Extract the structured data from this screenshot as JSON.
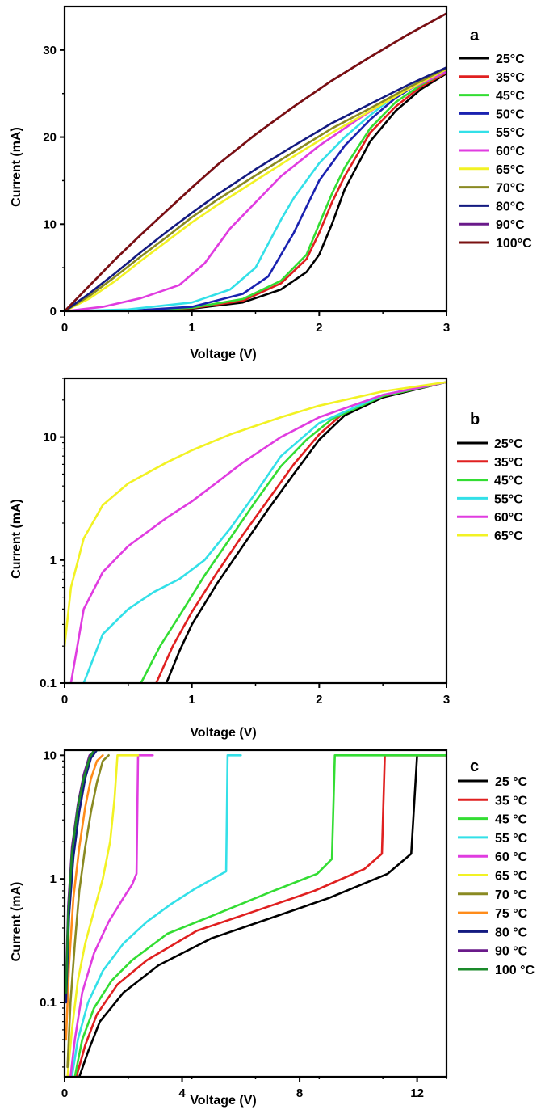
{
  "chart_data": [
    {
      "panel": "a",
      "type": "line",
      "xlabel": "Voltage (V)",
      "ylabel": "Current (mA)",
      "xlim": [
        0,
        3
      ],
      "ylim": [
        0,
        35
      ],
      "yscale": "linear",
      "xticks": [
        "0",
        "1",
        "2",
        "3"
      ],
      "yticks": [
        "0",
        "10",
        "20",
        "30"
      ],
      "legend_position": "right",
      "series": [
        {
          "name": "25°C",
          "color": "#000000",
          "x": [
            0,
            0.5,
            1.0,
            1.4,
            1.7,
            1.9,
            2.0,
            2.1,
            2.2,
            2.4,
            2.6,
            2.8,
            3.0
          ],
          "y": [
            0,
            0.05,
            0.3,
            1.0,
            2.5,
            4.5,
            6.5,
            10.0,
            14.0,
            19.5,
            23.0,
            25.5,
            27.3
          ]
        },
        {
          "name": "35°C",
          "color": "#e02020",
          "x": [
            0,
            0.5,
            1.0,
            1.4,
            1.7,
            1.9,
            2.0,
            2.1,
            2.2,
            2.4,
            2.6,
            2.8,
            3.0
          ],
          "y": [
            0,
            0.05,
            0.35,
            1.2,
            3.2,
            6.0,
            9.0,
            12.5,
            15.5,
            20.5,
            23.5,
            25.8,
            27.4
          ]
        },
        {
          "name": "45°C",
          "color": "#33dd33",
          "x": [
            0,
            0.5,
            1.0,
            1.4,
            1.7,
            1.9,
            2.0,
            2.1,
            2.2,
            2.4,
            2.6,
            2.8,
            3.0
          ],
          "y": [
            0,
            0.05,
            0.4,
            1.4,
            3.5,
            6.5,
            10.0,
            13.5,
            16.5,
            21.0,
            24.0,
            26.0,
            27.5
          ]
        },
        {
          "name": "50°C",
          "color": "#1a22b0",
          "x": [
            0,
            0.5,
            1.0,
            1.4,
            1.6,
            1.8,
            1.9,
            2.0,
            2.2,
            2.4,
            2.6,
            2.8,
            3.0
          ],
          "y": [
            0,
            0.05,
            0.5,
            2.0,
            4.0,
            9.0,
            12.0,
            15.0,
            19.0,
            22.0,
            24.5,
            26.3,
            27.6
          ]
        },
        {
          "name": "55°C",
          "color": "#33e0e8",
          "x": [
            0,
            0.5,
            1.0,
            1.3,
            1.5,
            1.7,
            1.8,
            2.0,
            2.2,
            2.4,
            2.6,
            2.8,
            3.0
          ],
          "y": [
            0,
            0.2,
            1.0,
            2.5,
            5.0,
            10.5,
            13.0,
            17.0,
            20.0,
            22.5,
            24.8,
            26.5,
            27.8
          ]
        },
        {
          "name": "60°C",
          "color": "#e03ce0",
          "x": [
            0,
            0.3,
            0.6,
            0.9,
            1.1,
            1.3,
            1.5,
            1.7,
            2.0,
            2.3,
            2.6,
            3.0
          ],
          "y": [
            0,
            0.5,
            1.5,
            3.0,
            5.5,
            9.5,
            12.5,
            15.5,
            19.0,
            22.0,
            24.8,
            27.5
          ]
        },
        {
          "name": "65°C",
          "color": "#f2f224",
          "x": [
            0,
            0.2,
            0.4,
            0.6,
            0.8,
            1.0,
            1.2,
            1.5,
            1.8,
            2.1,
            2.4,
            2.7,
            3.0
          ],
          "y": [
            0,
            1.5,
            3.5,
            5.8,
            8.0,
            10.2,
            12.2,
            15.0,
            17.8,
            20.5,
            23.0,
            25.5,
            27.8
          ]
        },
        {
          "name": "70°C",
          "color": "#8a8a22",
          "x": [
            0,
            0.2,
            0.4,
            0.6,
            0.8,
            1.0,
            1.2,
            1.5,
            1.8,
            2.1,
            2.4,
            2.7,
            3.0
          ],
          "y": [
            0,
            1.8,
            4.0,
            6.3,
            8.5,
            10.8,
            12.8,
            15.6,
            18.3,
            21.0,
            23.3,
            25.7,
            27.9
          ]
        },
        {
          "name": "80°C",
          "color": "#131a80",
          "x": [
            0,
            0.2,
            0.4,
            0.6,
            0.8,
            1.0,
            1.2,
            1.5,
            1.8,
            2.1,
            2.4,
            2.7,
            3.0
          ],
          "y": [
            0,
            2.1,
            4.4,
            6.8,
            9.1,
            11.3,
            13.4,
            16.3,
            19.0,
            21.6,
            23.8,
            26.0,
            28.0
          ]
        },
        {
          "name": "90°C",
          "color": "#6a1a8a",
          "x": [
            0,
            0.2,
            0.4,
            0.6,
            0.8,
            1.0,
            1.2,
            1.5,
            1.8,
            2.1,
            2.4,
            2.7,
            3.0
          ],
          "y": [
            0,
            3.0,
            6.0,
            8.8,
            11.5,
            14.2,
            16.8,
            20.3,
            23.5,
            26.5,
            29.2,
            31.8,
            34.2
          ]
        },
        {
          "name": "100°C",
          "color": "#7a1010",
          "x": [
            0,
            0.2,
            0.4,
            0.6,
            0.8,
            1.0,
            1.2,
            1.5,
            1.8,
            2.1,
            2.4,
            2.7,
            3.0
          ],
          "y": [
            0,
            3.0,
            6.0,
            8.8,
            11.5,
            14.2,
            16.8,
            20.3,
            23.5,
            26.5,
            29.2,
            31.8,
            34.2
          ]
        }
      ]
    },
    {
      "panel": "b",
      "type": "line",
      "xlabel": "Voltage (V)",
      "ylabel": "Current (mA)",
      "xlim": [
        0,
        3
      ],
      "ylim": [
        0.1,
        30
      ],
      "yscale": "log",
      "xticks": [
        "0",
        "1",
        "2",
        "3"
      ],
      "yticks": [
        "0.1",
        "1",
        "10"
      ],
      "legend_position": "right",
      "series": [
        {
          "name": "25°C",
          "color": "#000000",
          "x": [
            0.8,
            0.9,
            1.0,
            1.2,
            1.4,
            1.6,
            1.8,
            2.0,
            2.2,
            2.5,
            3.0
          ],
          "y": [
            0.1,
            0.18,
            0.3,
            0.65,
            1.3,
            2.6,
            5.0,
            9.5,
            15.0,
            21.0,
            28.0
          ]
        },
        {
          "name": "35°C",
          "color": "#e02020",
          "x": [
            0.72,
            0.85,
            1.0,
            1.2,
            1.4,
            1.6,
            1.8,
            2.0,
            2.2,
            2.5,
            3.0
          ],
          "y": [
            0.1,
            0.2,
            0.38,
            0.8,
            1.6,
            3.1,
            6.0,
            10.5,
            16.0,
            21.5,
            28.0
          ]
        },
        {
          "name": "45°C",
          "color": "#33dd33",
          "x": [
            0.6,
            0.75,
            0.9,
            1.1,
            1.3,
            1.5,
            1.7,
            1.9,
            2.1,
            2.5,
            3.0
          ],
          "y": [
            0.1,
            0.2,
            0.35,
            0.75,
            1.5,
            3.0,
            5.8,
            9.5,
            14.0,
            21.5,
            28.0
          ]
        },
        {
          "name": "55°C",
          "color": "#33e0e8",
          "x": [
            0.15,
            0.3,
            0.5,
            0.7,
            0.9,
            1.1,
            1.3,
            1.5,
            1.7,
            2.0,
            2.5,
            3.0
          ],
          "y": [
            0.1,
            0.25,
            0.4,
            0.55,
            0.7,
            1.0,
            1.8,
            3.5,
            7.0,
            13.0,
            22.0,
            28.0
          ]
        },
        {
          "name": "60°C",
          "color": "#e03ce0",
          "x": [
            0.05,
            0.15,
            0.3,
            0.5,
            0.8,
            1.0,
            1.2,
            1.4,
            1.7,
            2.0,
            2.5,
            3.0
          ],
          "y": [
            0.1,
            0.4,
            0.8,
            1.3,
            2.2,
            3.0,
            4.3,
            6.2,
            10.0,
            14.5,
            22.0,
            28.0
          ]
        },
        {
          "name": "65°C",
          "color": "#f2f224",
          "x": [
            0.0,
            0.05,
            0.15,
            0.3,
            0.5,
            0.8,
            1.0,
            1.3,
            1.7,
            2.0,
            2.5,
            3.0
          ],
          "y": [
            0.2,
            0.6,
            1.5,
            2.8,
            4.2,
            6.2,
            7.8,
            10.5,
            14.5,
            18.0,
            23.5,
            28.0
          ]
        }
      ]
    },
    {
      "panel": "c",
      "type": "line",
      "xlabel": "Voltage (V)",
      "ylabel": "Current (mA)",
      "xlim": [
        0,
        13
      ],
      "ylim": [
        0.025,
        11
      ],
      "yscale": "log",
      "xticks": [
        "0",
        "4",
        "8",
        "12"
      ],
      "yticks": [
        "0.1",
        "1",
        "10"
      ],
      "legend_position": "right",
      "series": [
        {
          "name": "25 °C",
          "color": "#000000",
          "x": [
            0.5,
            0.8,
            1.2,
            2.0,
            3.2,
            5.0,
            7.0,
            9.0,
            11.0,
            11.8,
            12.0,
            13.0
          ],
          "y": [
            0.025,
            0.04,
            0.07,
            0.12,
            0.2,
            0.33,
            0.48,
            0.7,
            1.1,
            1.6,
            10.0,
            10.0
          ]
        },
        {
          "name": "35 °C",
          "color": "#e02020",
          "x": [
            0.4,
            0.7,
            1.1,
            1.8,
            2.8,
            4.5,
            6.5,
            8.5,
            10.2,
            10.8,
            10.9,
            13.0
          ],
          "y": [
            0.025,
            0.045,
            0.08,
            0.14,
            0.22,
            0.38,
            0.55,
            0.8,
            1.2,
            1.6,
            10.0,
            10.0
          ]
        },
        {
          "name": "45 °C",
          "color": "#33dd33",
          "x": [
            0.35,
            0.6,
            1.0,
            1.6,
            2.3,
            3.5,
            5.0,
            7.0,
            8.6,
            9.1,
            9.2,
            13.0
          ],
          "y": [
            0.025,
            0.05,
            0.09,
            0.15,
            0.22,
            0.36,
            0.5,
            0.78,
            1.1,
            1.45,
            10.0,
            10.0
          ]
        },
        {
          "name": "55 °C",
          "color": "#33e0e8",
          "x": [
            0.25,
            0.45,
            0.8,
            1.3,
            2.0,
            2.8,
            3.6,
            4.4,
            5.2,
            5.5,
            5.55,
            6.0
          ],
          "y": [
            0.025,
            0.05,
            0.1,
            0.18,
            0.3,
            0.45,
            0.62,
            0.82,
            1.05,
            1.15,
            10.0,
            10.0
          ]
        },
        {
          "name": "60 °C",
          "color": "#e03ce0",
          "x": [
            0.2,
            0.35,
            0.6,
            1.0,
            1.5,
            2.0,
            2.3,
            2.45,
            2.5,
            3.0
          ],
          "y": [
            0.025,
            0.05,
            0.12,
            0.25,
            0.45,
            0.7,
            0.9,
            1.1,
            10.0,
            10.0
          ]
        },
        {
          "name": "65 °C",
          "color": "#f2f224",
          "x": [
            0.1,
            0.25,
            0.45,
            0.7,
            1.0,
            1.3,
            1.55,
            1.7,
            1.8,
            2.5
          ],
          "y": [
            0.025,
            0.06,
            0.15,
            0.3,
            0.55,
            1.0,
            2.0,
            4.5,
            10.0,
            10.0
          ]
        },
        {
          "name": "70 °C",
          "color": "#8a8a22",
          "x": [
            0.1,
            0.2,
            0.35,
            0.5,
            0.7,
            0.9,
            1.1,
            1.3,
            1.5
          ],
          "y": [
            0.03,
            0.1,
            0.3,
            0.8,
            1.8,
            3.5,
            6.0,
            9.0,
            10.0
          ]
        },
        {
          "name": "75 °C",
          "color": "#ff8c1a",
          "x": [
            0.05,
            0.15,
            0.3,
            0.5,
            0.7,
            0.9,
            1.1,
            1.3
          ],
          "y": [
            0.05,
            0.2,
            0.7,
            1.8,
            3.8,
            6.5,
            9.0,
            10.0
          ]
        },
        {
          "name": "80 °C",
          "color": "#131a80",
          "x": [
            0.05,
            0.15,
            0.3,
            0.5,
            0.7,
            0.9,
            1.1
          ],
          "y": [
            0.1,
            0.5,
            1.5,
            3.5,
            6.5,
            9.5,
            11.0
          ]
        },
        {
          "name": "90 °C",
          "color": "#6a1a8a",
          "x": [
            0.05,
            0.12,
            0.25,
            0.45,
            0.65,
            0.85,
            1.05
          ],
          "y": [
            0.15,
            0.6,
            1.8,
            4.0,
            7.0,
            10.0,
            11.0
          ]
        },
        {
          "name": "100 °C",
          "color": "#1a8a2a",
          "x": [
            0.05,
            0.12,
            0.25,
            0.45,
            0.65,
            0.85,
            1.0,
            1.2
          ],
          "y": [
            0.12,
            0.5,
            1.6,
            3.8,
            6.5,
            9.5,
            11.0,
            11.0
          ]
        }
      ]
    }
  ]
}
